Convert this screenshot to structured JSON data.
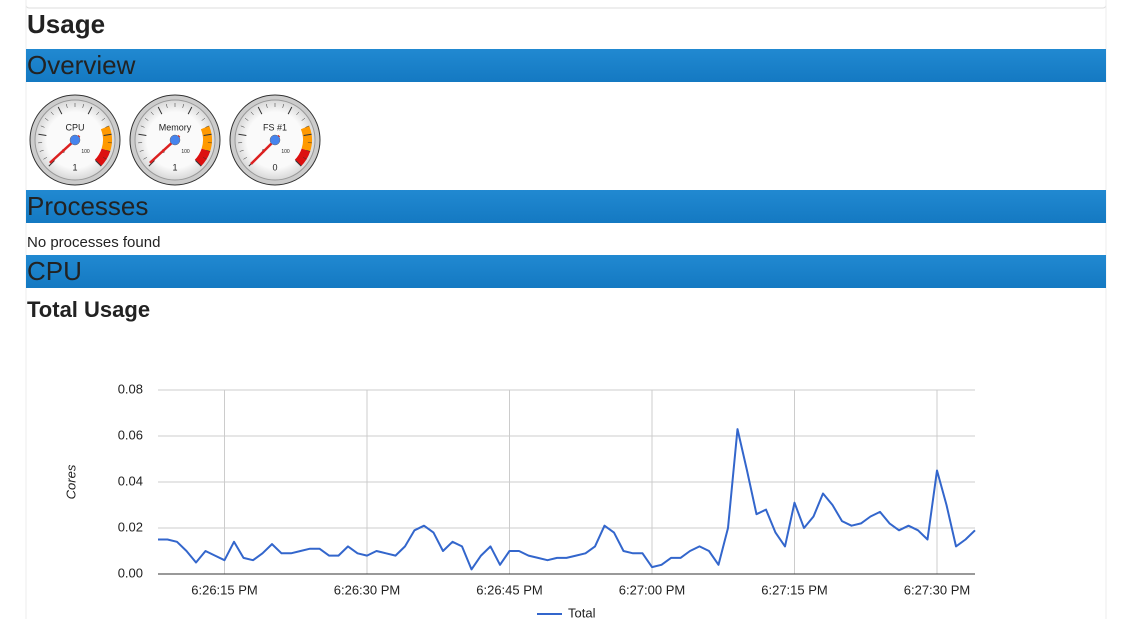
{
  "header": {
    "title": "Usage"
  },
  "sections": [
    {
      "title": "Overview"
    },
    {
      "title": "Processes",
      "message": "No processes found"
    },
    {
      "title": "CPU",
      "subtitle": "Total Usage"
    }
  ],
  "gauges": {
    "min": 0,
    "max": 100,
    "items": [
      {
        "label": "CPU",
        "value": 1
      },
      {
        "label": "Memory",
        "value": 1
      },
      {
        "label": "FS #1",
        "value": 0
      }
    ]
  },
  "chart_data": {
    "type": "line",
    "y_label": "Cores",
    "categories": [
      null,
      null,
      null,
      null,
      null,
      null,
      null,
      "6:26:15 PM",
      null,
      null,
      null,
      null,
      null,
      null,
      null,
      null,
      null,
      null,
      null,
      null,
      null,
      null,
      "6:26:30 PM",
      null,
      null,
      null,
      null,
      null,
      null,
      null,
      null,
      null,
      null,
      null,
      null,
      null,
      null,
      "6:26:45 PM",
      null,
      null,
      null,
      null,
      null,
      null,
      null,
      null,
      null,
      null,
      null,
      null,
      null,
      null,
      "6:27:00 PM",
      null,
      null,
      null,
      null,
      null,
      null,
      null,
      null,
      null,
      null,
      null,
      null,
      null,
      null,
      "6:27:15 PM",
      null,
      null,
      null,
      null,
      null,
      null,
      null,
      null,
      null,
      null,
      null,
      null,
      null,
      null,
      "6:27:30 PM",
      null,
      null,
      null,
      null
    ],
    "series": [
      {
        "name": "Total",
        "color": "#3366cc",
        "values": [
          0.015,
          0.015,
          0.014,
          0.01,
          0.005,
          0.01,
          0.008,
          0.006,
          0.014,
          0.007,
          0.006,
          0.009,
          0.013,
          0.009,
          0.009,
          0.01,
          0.011,
          0.011,
          0.008,
          0.008,
          0.012,
          0.009,
          0.008,
          0.01,
          0.009,
          0.008,
          0.012,
          0.019,
          0.021,
          0.018,
          0.01,
          0.014,
          0.012,
          0.002,
          0.008,
          0.012,
          0.004,
          0.01,
          0.01,
          0.008,
          0.007,
          0.006,
          0.007,
          0.007,
          0.008,
          0.009,
          0.012,
          0.021,
          0.018,
          0.01,
          0.009,
          0.009,
          0.003,
          0.004,
          0.007,
          0.007,
          0.01,
          0.012,
          0.01,
          0.004,
          0.02,
          0.063,
          0.045,
          0.026,
          0.028,
          0.018,
          0.012,
          0.031,
          0.02,
          0.025,
          0.035,
          0.03,
          0.023,
          0.021,
          0.022,
          0.025,
          0.027,
          0.022,
          0.019,
          0.021,
          0.019,
          0.015,
          0.045,
          0.03,
          0.012,
          0.015,
          0.019
        ]
      }
    ],
    "ylim": [
      0,
      0.08
    ],
    "yticks": [
      {
        "value": 0,
        "label": "0.00"
      },
      {
        "value": 0.02,
        "label": "0.02"
      },
      {
        "value": 0.04,
        "label": "0.04"
      },
      {
        "value": 0.06,
        "label": "0.06"
      },
      {
        "value": 0.08,
        "label": "0.08"
      }
    ],
    "grid": true,
    "legend": "bottom"
  }
}
